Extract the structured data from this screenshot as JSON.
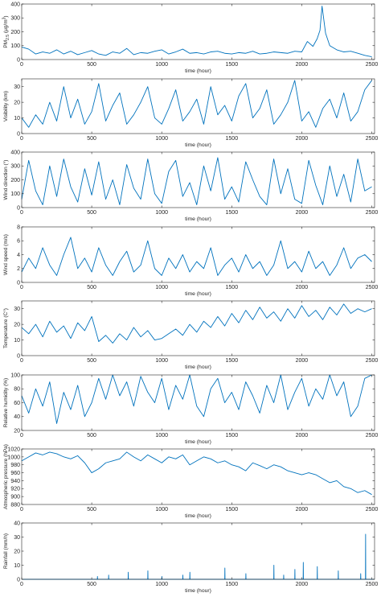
{
  "chart_data": [
    {
      "type": "line",
      "ylabel": "PM2.5 (μg/m³)",
      "ylabel_main": "PM",
      "ylabel_sub": "2.5",
      "ylabel_unit": " (μg/m",
      "ylabel_sup": "3",
      "ylabel_close": ")",
      "xlabel": "time (hour)",
      "xlim": [
        0,
        2520
      ],
      "ylim": [
        0,
        400
      ],
      "xticks": [
        "0",
        "500",
        "1000",
        "1500",
        "2000",
        "2500"
      ],
      "yticks": [
        "0",
        "100",
        "200",
        "300",
        "400"
      ],
      "series": [
        {
          "color": "#0072BD",
          "x": [
            0,
            50,
            100,
            150,
            200,
            250,
            300,
            350,
            400,
            450,
            500,
            550,
            600,
            650,
            700,
            750,
            800,
            850,
            900,
            950,
            1000,
            1050,
            1100,
            1150,
            1200,
            1250,
            1300,
            1350,
            1400,
            1450,
            1500,
            1550,
            1600,
            1650,
            1700,
            1750,
            1800,
            1850,
            1900,
            1950,
            2000,
            2040,
            2080,
            2110,
            2130,
            2145,
            2170,
            2200,
            2250,
            2300,
            2350,
            2400,
            2450,
            2500
          ],
          "y": [
            90,
            75,
            40,
            55,
            45,
            70,
            40,
            60,
            35,
            50,
            65,
            40,
            30,
            55,
            45,
            80,
            35,
            50,
            45,
            60,
            70,
            40,
            55,
            75,
            45,
            50,
            40,
            55,
            60,
            45,
            40,
            50,
            45,
            60,
            40,
            45,
            55,
            50,
            45,
            60,
            55,
            130,
            95,
            150,
            210,
            385,
            190,
            100,
            70,
            55,
            60,
            45,
            30,
            20
          ]
        }
      ]
    },
    {
      "type": "line",
      "ylabel": "Visibility (km)",
      "xlabel": "time (hour)",
      "xlim": [
        0,
        2520
      ],
      "ylim": [
        0,
        35
      ],
      "xticks": [
        "0",
        "500",
        "1000",
        "1500",
        "2000",
        "2500"
      ],
      "yticks": [
        "0",
        "10",
        "20",
        "30"
      ],
      "series": [
        {
          "color": "#0072BD",
          "x": [
            0,
            50,
            100,
            150,
            200,
            250,
            300,
            350,
            400,
            450,
            500,
            550,
            600,
            650,
            700,
            750,
            800,
            850,
            900,
            950,
            1000,
            1050,
            1100,
            1150,
            1200,
            1250,
            1300,
            1350,
            1400,
            1450,
            1500,
            1550,
            1600,
            1650,
            1700,
            1750,
            1800,
            1850,
            1900,
            1950,
            2000,
            2050,
            2100,
            2150,
            2200,
            2250,
            2300,
            2350,
            2400,
            2450,
            2500
          ],
          "y": [
            10,
            4,
            12,
            6,
            20,
            8,
            30,
            10,
            22,
            6,
            14,
            32,
            8,
            18,
            26,
            6,
            12,
            20,
            30,
            10,
            6,
            16,
            28,
            8,
            14,
            22,
            6,
            30,
            12,
            18,
            8,
            24,
            32,
            10,
            16,
            28,
            6,
            12,
            20,
            34,
            8,
            14,
            4,
            16,
            22,
            10,
            26,
            8,
            14,
            28,
            34
          ]
        }
      ]
    },
    {
      "type": "line",
      "ylabel": "Wind direction (°)",
      "xlabel": "time (hour)",
      "xlim": [
        0,
        2520
      ],
      "ylim": [
        0,
        400
      ],
      "xticks": [
        "0",
        "500",
        "1000",
        "1500",
        "2000",
        "2500"
      ],
      "yticks": [
        "0",
        "100",
        "200",
        "300",
        "400"
      ],
      "series": [
        {
          "color": "#0072BD",
          "x": [
            0,
            50,
            100,
            150,
            200,
            250,
            300,
            350,
            400,
            450,
            500,
            550,
            600,
            650,
            700,
            750,
            800,
            850,
            900,
            950,
            1000,
            1050,
            1100,
            1150,
            1200,
            1250,
            1300,
            1350,
            1400,
            1450,
            1500,
            1550,
            1600,
            1650,
            1700,
            1750,
            1800,
            1850,
            1900,
            1950,
            2000,
            2050,
            2100,
            2150,
            2200,
            2250,
            2300,
            2350,
            2400,
            2450,
            2500
          ],
          "y": [
            60,
            340,
            120,
            20,
            300,
            80,
            350,
            150,
            40,
            280,
            90,
            330,
            60,
            200,
            20,
            310,
            140,
            60,
            350,
            100,
            30,
            260,
            340,
            80,
            180,
            20,
            300,
            120,
            360,
            60,
            150,
            40,
            330,
            200,
            80,
            20,
            350,
            100,
            280,
            60,
            30,
            340,
            160,
            20,
            300,
            80,
            240,
            40,
            350,
            120,
            150
          ]
        }
      ]
    },
    {
      "type": "line",
      "ylabel": "Wind speed (m/s)",
      "xlabel": "time (hour)",
      "xlim": [
        0,
        2520
      ],
      "ylim": [
        0,
        8
      ],
      "xticks": [
        "0",
        "500",
        "1000",
        "1500",
        "2000",
        "2500"
      ],
      "yticks": [
        "0",
        "2",
        "4",
        "6",
        "8"
      ],
      "series": [
        {
          "color": "#0072BD",
          "x": [
            0,
            50,
            100,
            150,
            200,
            250,
            300,
            350,
            400,
            450,
            500,
            550,
            600,
            650,
            700,
            750,
            800,
            850,
            900,
            950,
            1000,
            1050,
            1100,
            1150,
            1200,
            1250,
            1300,
            1350,
            1400,
            1450,
            1500,
            1550,
            1600,
            1650,
            1700,
            1750,
            1800,
            1850,
            1900,
            1950,
            2000,
            2050,
            2100,
            2150,
            2200,
            2250,
            2300,
            2350,
            2400,
            2450,
            2500
          ],
          "y": [
            1.5,
            3.5,
            2,
            5,
            2.5,
            1,
            4,
            6.5,
            2,
            3.5,
            1.5,
            5,
            2.5,
            1,
            3,
            4.5,
            1.5,
            2.5,
            6,
            2,
            1,
            3.5,
            2,
            4,
            1.5,
            3,
            2,
            5,
            1,
            2.5,
            3.5,
            1.5,
            4,
            2,
            3,
            1,
            2.5,
            6,
            2,
            3,
            1.5,
            4.5,
            2,
            3,
            1,
            2.5,
            5,
            2,
            3.5,
            4,
            3
          ]
        }
      ]
    },
    {
      "type": "line",
      "ylabel": "Temperature (C°)",
      "xlabel": "time (hour)",
      "xlim": [
        0,
        2520
      ],
      "ylim": [
        0,
        35
      ],
      "xticks": [
        "0",
        "500",
        "1000",
        "1500",
        "2000",
        "2500"
      ],
      "yticks": [
        "0",
        "10",
        "20",
        "30"
      ],
      "series": [
        {
          "color": "#0072BD",
          "x": [
            0,
            50,
            100,
            150,
            200,
            250,
            300,
            350,
            400,
            450,
            500,
            550,
            600,
            650,
            700,
            750,
            800,
            850,
            900,
            950,
            1000,
            1050,
            1100,
            1150,
            1200,
            1250,
            1300,
            1350,
            1400,
            1450,
            1500,
            1550,
            1600,
            1650,
            1700,
            1750,
            1800,
            1850,
            1900,
            1950,
            2000,
            2050,
            2100,
            2150,
            2200,
            2250,
            2300,
            2350,
            2400,
            2450,
            2500
          ],
          "y": [
            18,
            14,
            20,
            12,
            22,
            15,
            19,
            11,
            21,
            16,
            25,
            9,
            13,
            8,
            14,
            10,
            18,
            12,
            16,
            10,
            11,
            14,
            17,
            13,
            20,
            15,
            22,
            18,
            25,
            19,
            27,
            21,
            29,
            23,
            31,
            24,
            28,
            22,
            30,
            24,
            32,
            25,
            29,
            23,
            31,
            26,
            33,
            27,
            30,
            28,
            30
          ]
        }
      ]
    },
    {
      "type": "line",
      "ylabel": "Relative humidity (%)",
      "xlabel": "time (hour)",
      "xlim": [
        0,
        2520
      ],
      "ylim": [
        20,
        100
      ],
      "xticks": [
        "0",
        "500",
        "1000",
        "1500",
        "2000",
        "2500"
      ],
      "yticks": [
        "20",
        "40",
        "60",
        "80",
        "100"
      ],
      "series": [
        {
          "color": "#0072BD",
          "x": [
            0,
            50,
            100,
            150,
            200,
            250,
            300,
            350,
            400,
            450,
            500,
            550,
            600,
            650,
            700,
            750,
            800,
            850,
            900,
            950,
            1000,
            1050,
            1100,
            1150,
            1200,
            1250,
            1300,
            1350,
            1400,
            1450,
            1500,
            1550,
            1600,
            1650,
            1700,
            1750,
            1800,
            1850,
            1900,
            1950,
            2000,
            2050,
            2100,
            2150,
            2200,
            2250,
            2300,
            2350,
            2400,
            2450,
            2500
          ],
          "y": [
            70,
            45,
            80,
            55,
            90,
            30,
            75,
            50,
            85,
            40,
            60,
            95,
            65,
            100,
            70,
            90,
            55,
            98,
            75,
            60,
            95,
            50,
            85,
            65,
            100,
            55,
            40,
            80,
            95,
            60,
            75,
            50,
            90,
            70,
            45,
            85,
            60,
            100,
            50,
            75,
            95,
            55,
            80,
            65,
            100,
            70,
            90,
            40,
            55,
            95,
            100
          ]
        }
      ]
    },
    {
      "type": "line",
      "ylabel": "Atmospheric pressure (hPa)",
      "xlabel": "time (hour)",
      "xlim": [
        0,
        2520
      ],
      "ylim": [
        880,
        1020
      ],
      "xticks": [
        "0",
        "500",
        "1000",
        "1500",
        "2000",
        "2500"
      ],
      "yticks": [
        "880",
        "900",
        "920",
        "940",
        "960",
        "980",
        "1000",
        "1020"
      ],
      "series": [
        {
          "color": "#0072BD",
          "x": [
            0,
            50,
            100,
            150,
            200,
            250,
            300,
            350,
            400,
            450,
            500,
            550,
            600,
            650,
            700,
            750,
            800,
            850,
            900,
            950,
            1000,
            1050,
            1100,
            1150,
            1200,
            1250,
            1300,
            1350,
            1400,
            1450,
            1500,
            1550,
            1600,
            1650,
            1700,
            1750,
            1800,
            1850,
            1900,
            1950,
            2000,
            2050,
            2100,
            2150,
            2200,
            2250,
            2300,
            2350,
            2400,
            2450,
            2500
          ],
          "y": [
            990,
            1000,
            1010,
            1005,
            1012,
            1008,
            1000,
            995,
            1003,
            985,
            960,
            970,
            985,
            990,
            995,
            1012,
            1000,
            990,
            1005,
            995,
            985,
            1000,
            995,
            1005,
            980,
            990,
            1000,
            995,
            985,
            990,
            980,
            975,
            965,
            985,
            978,
            970,
            980,
            975,
            965,
            960,
            955,
            960,
            955,
            945,
            935,
            940,
            925,
            920,
            910,
            915,
            905
          ]
        }
      ]
    },
    {
      "type": "line",
      "ylabel": "Rainfall (mm/h)",
      "xlabel": "time (hour)",
      "xlim": [
        0,
        2520
      ],
      "ylim": [
        0,
        40
      ],
      "xticks": [
        "0",
        "500",
        "1000",
        "1500",
        "2000",
        "2500"
      ],
      "yticks": [
        "0",
        "10",
        "20",
        "30",
        "40"
      ],
      "series": [
        {
          "color": "#0072BD",
          "x": [
            0,
            540,
            541,
            542,
            620,
            621,
            622,
            760,
            761,
            762,
            900,
            901,
            902,
            1000,
            1001,
            1002,
            1150,
            1151,
            1152,
            1200,
            1201,
            1202,
            1450,
            1451,
            1452,
            1600,
            1601,
            1602,
            1800,
            1801,
            1802,
            1870,
            1871,
            1872,
            1950,
            1951,
            1952,
            2010,
            2011,
            2012,
            2110,
            2111,
            2112,
            2260,
            2261,
            2262,
            2420,
            2421,
            2422,
            2455,
            2456,
            2457,
            2520
          ],
          "y": [
            0,
            0,
            2,
            0,
            0,
            3,
            0,
            0,
            5,
            0,
            0,
            6,
            0,
            0,
            2,
            0,
            0,
            3,
            0,
            0,
            5,
            0,
            0,
            8,
            0,
            0,
            4,
            0,
            0,
            10,
            0,
            0,
            3,
            0,
            0,
            7,
            0,
            0,
            12,
            0,
            0,
            9,
            0,
            0,
            6,
            0,
            0,
            4,
            0,
            0,
            32,
            0,
            0
          ]
        }
      ]
    }
  ]
}
